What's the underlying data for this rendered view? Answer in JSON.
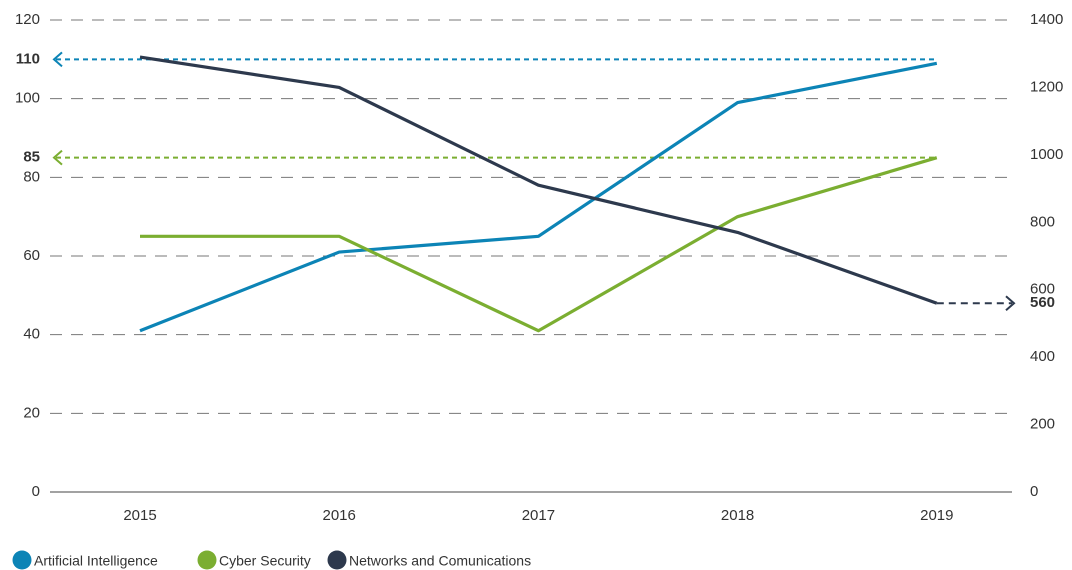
{
  "chart_data": {
    "type": "line",
    "categories": [
      "2015",
      "2016",
      "2017",
      "2018",
      "2019"
    ],
    "series": [
      {
        "name": "Artificial Intelligence",
        "color": "#0c84b6",
        "values": [
          41,
          61,
          65,
          99,
          109
        ]
      },
      {
        "name": "Cyber Security",
        "color": "#7bae31",
        "values": [
          65,
          65,
          41,
          70,
          85
        ]
      },
      {
        "name": "Networks and Comunications",
        "color": "#2d394d",
        "axis": "y2",
        "values": [
          1290,
          1200,
          910,
          770,
          560
        ]
      }
    ],
    "ylim": [
      0,
      120
    ],
    "yticks": [
      0,
      20,
      40,
      60,
      80,
      100,
      120
    ],
    "y2lim": [
      0,
      1400
    ],
    "y2ticks": [
      0,
      200,
      400,
      600,
      800,
      1000,
      1200,
      1400
    ],
    "grid": true,
    "legend": "bottom-left",
    "reference_lines": [
      {
        "value": 110,
        "series": 0,
        "side": "left"
      },
      {
        "value": 85,
        "series": 1,
        "side": "left"
      },
      {
        "value": 560,
        "series": 2,
        "side": "right"
      }
    ]
  }
}
